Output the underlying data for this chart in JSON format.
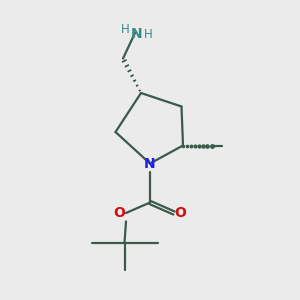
{
  "bg_color": "#ebebeb",
  "bond_color": "#3a5a4a",
  "N_color": "#2222dd",
  "O_color": "#cc1111",
  "NH2_color": "#3a8888",
  "line_width": 1.6,
  "figsize": [
    3.0,
    3.0
  ],
  "dpi": 100,
  "NH_H_left": "H",
  "NH_N": "N",
  "NH_H_right": "H"
}
